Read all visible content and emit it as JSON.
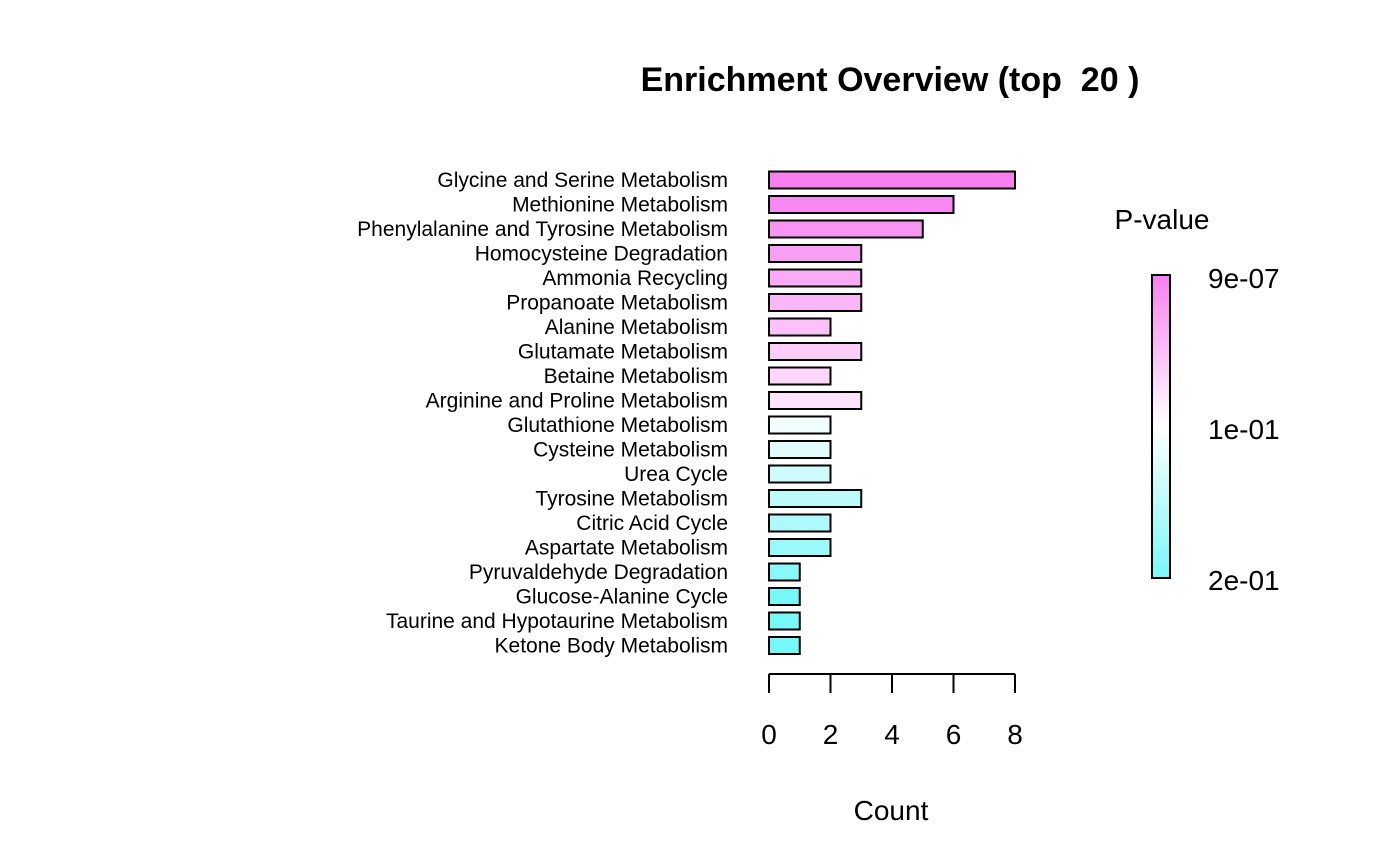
{
  "chart_data": {
    "type": "bar",
    "orientation": "horizontal",
    "title": "Enrichment Overview (top  20 )",
    "xlabel": "Count",
    "ylabel": "",
    "xlim": [
      0,
      8
    ],
    "x_ticks": [
      0,
      2,
      4,
      6,
      8
    ],
    "grid": false,
    "categories": [
      "Glycine and Serine Metabolism",
      "Methionine Metabolism",
      "Phenylalanine and Tyrosine Metabolism",
      "Homocysteine Degradation",
      "Ammonia Recycling",
      "Propanoate Metabolism",
      "Alanine Metabolism",
      "Glutamate Metabolism",
      "Betaine Metabolism",
      "Arginine and Proline Metabolism",
      "Glutathione Metabolism",
      "Cysteine Metabolism",
      "Urea Cycle",
      "Tyrosine Metabolism",
      "Citric Acid Cycle",
      "Aspartate Metabolism",
      "Pyruvaldehyde Degradation",
      "Glucose-Alanine Cycle",
      "Taurine and Hypotaurine Metabolism",
      "Ketone Body Metabolism"
    ],
    "values": [
      8,
      6,
      5,
      3,
      3,
      3,
      2,
      3,
      2,
      3,
      2,
      2,
      2,
      3,
      2,
      2,
      1,
      1,
      1,
      1
    ],
    "bar_colors": [
      "#f77ff0",
      "#f78af2",
      "#f895f3",
      "#f9a0f4",
      "#f9abf5",
      "#fab6f7",
      "#fbc1f8",
      "#fccdf9",
      "#fdd8fa",
      "#fde3fb",
      "#f2fdfd",
      "#e0fcfc",
      "#cefcfc",
      "#bdfbfb",
      "#acfafa",
      "#9afafa",
      "#88f9f9",
      "#77f8f8",
      "#77f8f8",
      "#77f8f8"
    ],
    "legend": {
      "title": "P-value",
      "position": "right",
      "labels": [
        "9e-07",
        "1e-01",
        "2e-01"
      ],
      "colors": [
        "#f77ff0",
        "#ffffff",
        "#77f8f8"
      ]
    }
  }
}
